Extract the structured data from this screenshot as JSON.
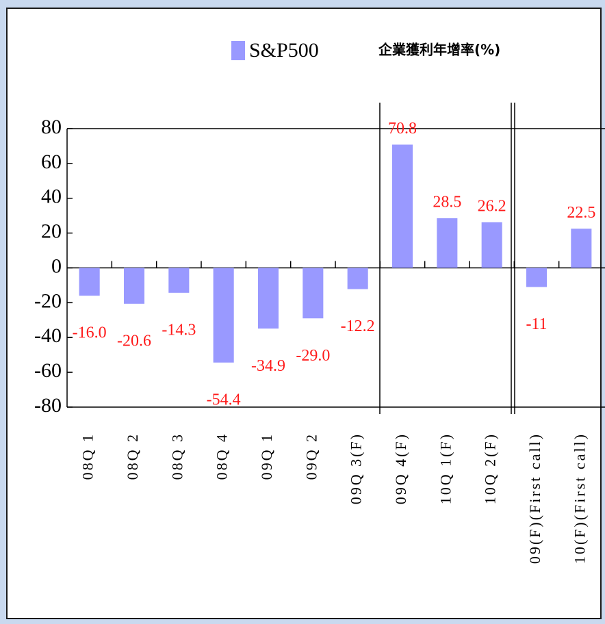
{
  "chart_data": {
    "type": "bar",
    "title": "企業獲利年增率(%)",
    "categories": [
      "08Q 1",
      "08Q 2",
      "08Q 3",
      "08Q 4",
      "09Q 1",
      "09Q 2",
      "09Q 3(F)",
      "09Q 4(F)",
      "10Q 1(F)",
      "10Q 2(F)",
      "09(F)(First call)",
      "10(F)(First call)"
    ],
    "series": [
      {
        "name": "S&P500",
        "color": "#9999ff",
        "values": [
          -16.0,
          -20.6,
          -14.3,
          -54.4,
          -34.9,
          -29.0,
          -12.2,
          70.8,
          28.5,
          26.2,
          -11,
          22.5
        ],
        "value_labels": [
          "-16.0",
          "-20.6",
          "-14.3",
          "-54.4",
          "-34.9",
          "-29.0",
          "-12.2",
          "70.8",
          "28.5",
          "26.2",
          "-11",
          "22.5"
        ]
      }
    ],
    "ylim": [
      -80,
      80
    ],
    "yticks": [
      -80,
      -60,
      -40,
      -20,
      0,
      20,
      40,
      60,
      80
    ]
  }
}
